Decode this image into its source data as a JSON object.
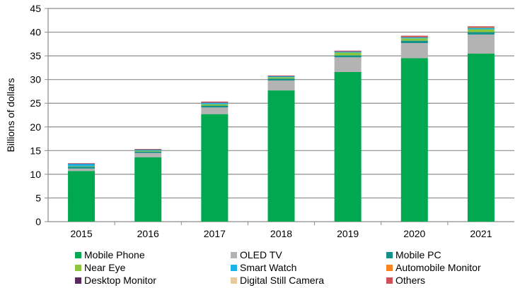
{
  "chart_data": {
    "type": "bar",
    "stacked": true,
    "title": "",
    "xlabel": "",
    "ylabel": "Billions of dollars",
    "ylim": [
      0,
      45
    ],
    "yticks": [
      0,
      5,
      10,
      15,
      20,
      25,
      30,
      35,
      40,
      45
    ],
    "grid": true,
    "legend_position": "bottom",
    "categories": [
      "2015",
      "2016",
      "2017",
      "2018",
      "2019",
      "2020",
      "2021"
    ],
    "series": [
      {
        "name": "Mobile Phone",
        "color": "#00a84f",
        "values": [
          10.7,
          13.6,
          22.7,
          27.7,
          31.6,
          34.5,
          35.5
        ]
      },
      {
        "name": "OLED TV",
        "color": "#b3b3b3",
        "values": [
          0.5,
          0.9,
          1.4,
          2.1,
          3.1,
          3.2,
          4.0
        ]
      },
      {
        "name": "Mobile PC",
        "color": "#13908a",
        "values": [
          0.4,
          0.3,
          0.4,
          0.4,
          0.4,
          0.5,
          0.5
        ]
      },
      {
        "name": "Near Eye",
        "color": "#8cc63f",
        "values": [
          0.1,
          0.2,
          0.3,
          0.3,
          0.6,
          0.5,
          0.6
        ]
      },
      {
        "name": "Smart Watch",
        "color": "#1ab2e8",
        "values": [
          0.5,
          0.2,
          0.3,
          0.2,
          0.2,
          0.2,
          0.3
        ]
      },
      {
        "name": "Automobile Monitor",
        "color": "#f7841f",
        "values": [
          0.0,
          0.0,
          0.0,
          0.0,
          0.0,
          0.1,
          0.2
        ]
      },
      {
        "name": "Desktop Monitor",
        "color": "#5a2a5f",
        "values": [
          0.05,
          0.05,
          0.05,
          0.05,
          0.05,
          0.05,
          0.05
        ]
      },
      {
        "name": "Digital Still Camera",
        "color": "#e8c9a0",
        "values": [
          0.0,
          0.0,
          0.0,
          0.0,
          0.0,
          0.0,
          0.0
        ]
      },
      {
        "name": "Others",
        "color": "#d0505a",
        "values": [
          0.1,
          0.1,
          0.2,
          0.1,
          0.15,
          0.2,
          0.1
        ]
      }
    ]
  }
}
